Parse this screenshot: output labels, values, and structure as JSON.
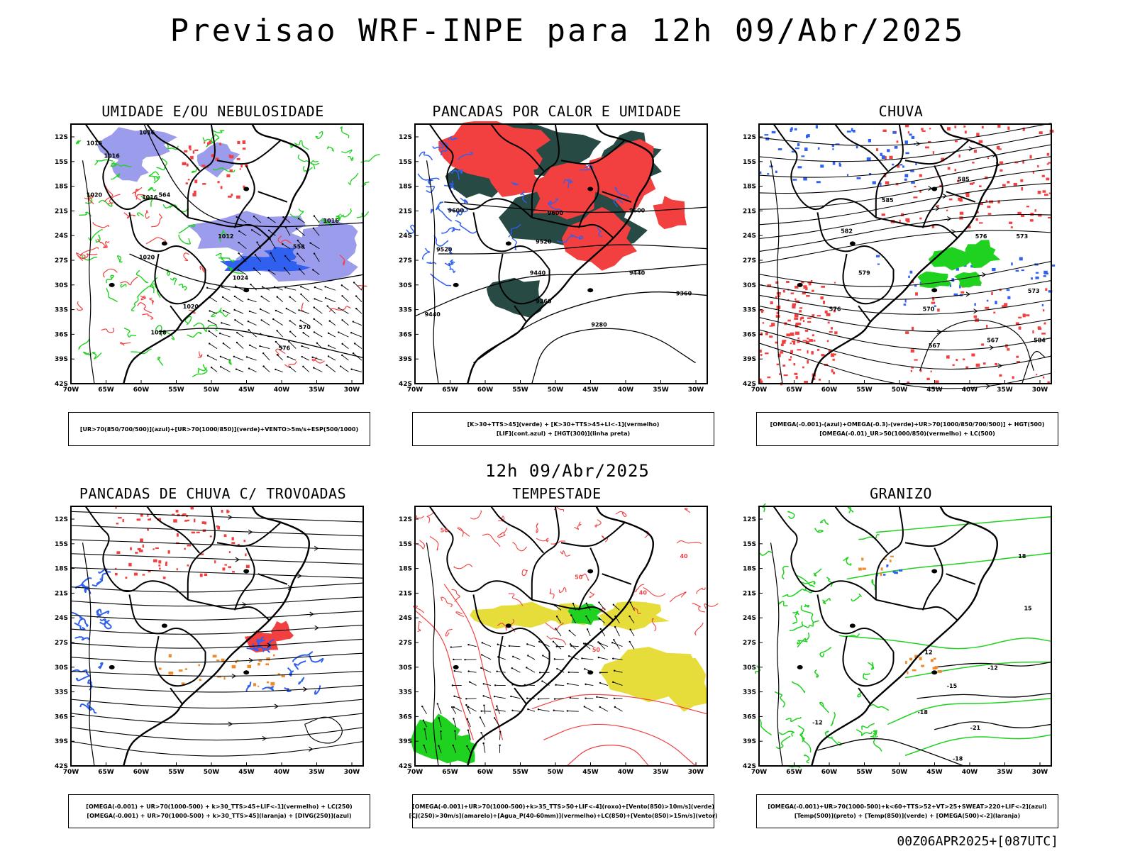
{
  "title": "Previsao WRF-INPE  para 12h 09/Abr/2025",
  "mid_label": "12h 09/Abr/2025",
  "footer": "00Z06APR2025+[087UTC]",
  "lat_ticks": [
    "12S",
    "15S",
    "18S",
    "21S",
    "24S",
    "27S",
    "30S",
    "33S",
    "36S",
    "39S",
    "42S"
  ],
  "lon_ticks": [
    "70W",
    "65W",
    "60W",
    "55W",
    "50W",
    "45W",
    "40W",
    "35W",
    "30W"
  ],
  "colors": {
    "blue": "#3060f0",
    "green": "#1fd21f",
    "red": "#f24040",
    "lavender": "#9c9cec",
    "darkteal": "#274a44",
    "yellow": "#e6dc3a",
    "orange": "#ee8a2a",
    "purple": "#a030c0"
  },
  "panels": [
    {
      "id": "umidade",
      "title": "UMIDADE E/OU NEBULOSIDADE",
      "legend": [
        "[UR>70(850/700/500)](azul)+[UR>70(1000/850)](verde)+VENTO>5m/s+ESP(500/1000)"
      ],
      "contour_labels": [
        "1016",
        "1016",
        "1016",
        "1020",
        "1016",
        "1012",
        "1016",
        "1020",
        "1024",
        "1020",
        "1028",
        "570",
        "576",
        "564",
        "558"
      ]
    },
    {
      "id": "pancadas-calor",
      "title": "PANCADAS POR CALOR E UMIDADE",
      "legend": [
        "[K>30+TTS>45](verde) + [K>30+TTS>45+LI<-1](vermelho)",
        "[LIF](cont.azul) + [HGT(300)](linha preta)"
      ],
      "contour_labels": [
        "9600",
        "9600",
        "9600",
        "9520",
        "9520",
        "9440",
        "9440",
        "9360",
        "9360",
        "9280",
        "9440"
      ]
    },
    {
      "id": "chuva",
      "title": "CHUVA",
      "legend": [
        "[OMEGA(-0.001)-(azul)+OMEGA(-0.3)-(verde)+UR>70(1000/850/700/500)] + HGT(500)",
        "[OMEGA(-0.01)_UR>50(1000/850)(vermelho) + LC(500)"
      ],
      "contour_labels": [
        "585",
        "585",
        "582",
        "579",
        "576",
        "573",
        "570",
        "567",
        "567",
        "573",
        "576",
        "584"
      ]
    },
    {
      "id": "pancadas-trovoadas",
      "title": "PANCADAS DE CHUVA C/ TROVOADAS",
      "legend": [
        "[OMEGA(-0.001) + UR>70(1000-500) + k>30_TTS>45+LIF<-1](vermelho) + LC(250)",
        "[OMEGA(-0.001) + UR>70(1000-500) + k>30_TTS>45](laranja) + [DIVG(250)](azul)"
      ],
      "contour_labels": []
    },
    {
      "id": "tempestade",
      "title": "TEMPESTADE",
      "legend": [
        "[OMEGA(-0.001)+UR>70(1000-500)+k>35_TTS>50+LIF<-4](roxo)+[Vento(850)>10m/s](verde)",
        "[CJ(250)>30m/s](amarelo)+[Agua_P(40-60mm)](vermelho)+LC(850)+[Vento(850)>15m/s](vetor)"
      ],
      "contour_labels": [
        "50",
        "50",
        "40",
        "40",
        "50"
      ]
    },
    {
      "id": "granizo",
      "title": "GRANIZO",
      "legend": [
        "[OMEGA(-0.001)+UR>70(1000-500)+k<60+TTS>52+VT>25+SWEAT>220+LIF<-2](azul)",
        "[Temp(500)](preto) + [Temp(850)](verde) + [OMEGA(500)<-2](laranja)"
      ],
      "contour_labels": [
        "-12",
        "-15",
        "-18",
        "-21",
        "-12",
        "-18",
        "12",
        "15",
        "18"
      ]
    }
  ]
}
